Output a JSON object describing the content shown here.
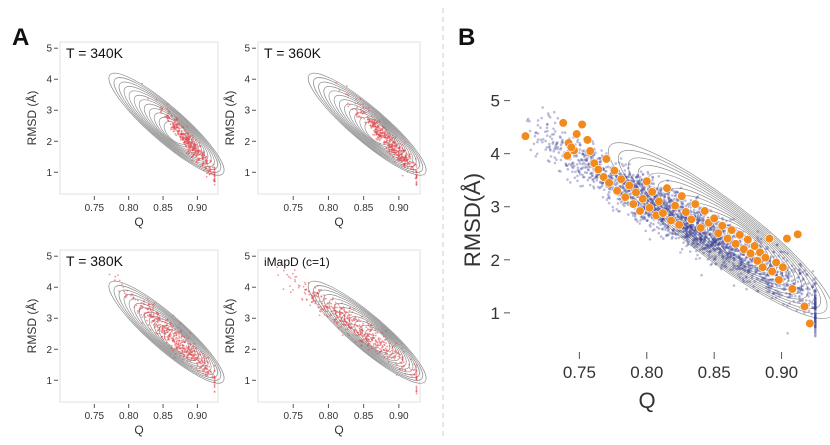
{
  "figure": {
    "panel_a_label": "A",
    "panel_b_label": "B"
  },
  "colors": {
    "contour": "#7d7d7d",
    "red_samples": "#e0474c",
    "blue_samples": "#3d4396",
    "orange_points": "#f28a1e",
    "divider": "#cccccc"
  },
  "chart_data": [
    {
      "type": "scatter",
      "title": "T = 340K",
      "xlabel": "Q",
      "ylabel": "RMSD (Å)",
      "xticks": [
        "0.75",
        "0.80",
        "0.85",
        "0.90"
      ],
      "yticks": [
        "1",
        "2",
        "3",
        "4",
        "5"
      ],
      "xlim": [
        0.7,
        0.93
      ],
      "ylim": [
        0.3,
        5.2
      ],
      "background": "contour density (gray)",
      "series": [
        {
          "name": "T = 340K samples",
          "color": "#e0474c",
          "center": [
            0.89,
            1.9
          ],
          "spread": [
            0.017,
            0.5
          ],
          "count": 420
        }
      ]
    },
    {
      "type": "scatter",
      "title": "T = 360K",
      "xlabel": "Q",
      "ylabel": "RMSD (Å)",
      "xticks": [
        "0.75",
        "0.80",
        "0.85",
        "0.90"
      ],
      "yticks": [
        "1",
        "2",
        "3",
        "4",
        "5"
      ],
      "xlim": [
        0.7,
        0.93
      ],
      "ylim": [
        0.3,
        5.2
      ],
      "background": "contour density (gray)",
      "series": [
        {
          "name": "T = 360K samples",
          "color": "#e0474c",
          "center": [
            0.885,
            2.0
          ],
          "spread": [
            0.02,
            0.55
          ],
          "count": 480
        }
      ]
    },
    {
      "type": "scatter",
      "title": "T = 380K",
      "xlabel": "Q",
      "ylabel": "RMSD (Å)",
      "xticks": [
        "0.75",
        "0.80",
        "0.85",
        "0.90"
      ],
      "yticks": [
        "1",
        "2",
        "3",
        "4",
        "5"
      ],
      "xlim": [
        0.7,
        0.93
      ],
      "ylim": [
        0.3,
        5.2
      ],
      "background": "contour density (gray)",
      "series": [
        {
          "name": "T = 380K samples",
          "color": "#e0474c",
          "center": [
            0.87,
            2.3
          ],
          "spread": [
            0.028,
            0.65
          ],
          "count": 500
        }
      ]
    },
    {
      "type": "scatter",
      "title": "iMapD (c=1)",
      "xlabel": "Q",
      "ylabel": "RMSD (Å)",
      "xticks": [
        "0.75",
        "0.80",
        "0.85",
        "0.90"
      ],
      "yticks": [
        "1",
        "2",
        "3",
        "4",
        "5"
      ],
      "xlim": [
        0.7,
        0.93
      ],
      "ylim": [
        0.3,
        5.2
      ],
      "background": "contour density (gray)",
      "series": [
        {
          "name": "iMapD samples",
          "color": "#e0474c",
          "center": [
            0.84,
            2.7
          ],
          "spread": [
            0.04,
            0.75
          ],
          "count": 520
        }
      ]
    },
    {
      "type": "scatter",
      "title": "",
      "xlabel": "Q",
      "ylabel": "RMSD(Å)",
      "xticks": [
        "0.75",
        "0.80",
        "0.85",
        "0.90"
      ],
      "yticks": [
        "1",
        "2",
        "3",
        "4",
        "5"
      ],
      "xlim": [
        0.7,
        0.93
      ],
      "ylim": [
        0.3,
        5.2
      ],
      "background": "contour density (gray)",
      "series": [
        {
          "name": "samples (blue cloud)",
          "color": "#3d4396",
          "center": [
            0.83,
            2.7
          ],
          "spread": [
            0.045,
            0.75
          ],
          "count": 2600
        },
        {
          "name": "highlighted points",
          "color": "#f28a1e",
          "x": [
            0.71,
            0.738,
            0.742,
            0.746,
            0.741,
            0.748,
            0.752,
            0.744,
            0.756,
            0.761,
            0.758,
            0.764,
            0.768,
            0.77,
            0.772,
            0.776,
            0.778,
            0.781,
            0.784,
            0.787,
            0.79,
            0.792,
            0.795,
            0.797,
            0.8,
            0.802,
            0.804,
            0.807,
            0.809,
            0.812,
            0.815,
            0.818,
            0.821,
            0.824,
            0.826,
            0.829,
            0.833,
            0.836,
            0.84,
            0.843,
            0.846,
            0.85,
            0.853,
            0.856,
            0.86,
            0.863,
            0.866,
            0.869,
            0.872,
            0.875,
            0.877,
            0.88,
            0.882,
            0.884,
            0.886,
            0.888,
            0.891,
            0.893,
            0.896,
            0.898,
            0.901,
            0.904,
            0.908,
            0.912,
            0.917,
            0.921
          ],
          "y": [
            4.33,
            4.58,
            4.2,
            4.06,
            3.96,
            4.37,
            4.55,
            4.12,
            4.26,
            3.82,
            4.05,
            3.7,
            3.56,
            3.9,
            3.45,
            3.68,
            3.3,
            3.52,
            3.18,
            3.4,
            3.05,
            3.27,
            2.92,
            3.15,
            3.48,
            2.98,
            3.28,
            2.84,
            3.1,
            2.88,
            3.35,
            2.74,
            3.02,
            2.66,
            3.2,
            2.9,
            2.76,
            3.05,
            2.6,
            2.92,
            2.7,
            2.78,
            2.5,
            2.64,
            2.4,
            2.56,
            2.3,
            2.47,
            2.2,
            2.38,
            2.12,
            2.26,
            1.98,
            2.14,
            1.86,
            2.04,
            2.4,
            1.78,
            1.95,
            1.62,
            1.86,
            2.4,
            1.45,
            2.48,
            1.12,
            0.8
          ]
        }
      ]
    }
  ]
}
